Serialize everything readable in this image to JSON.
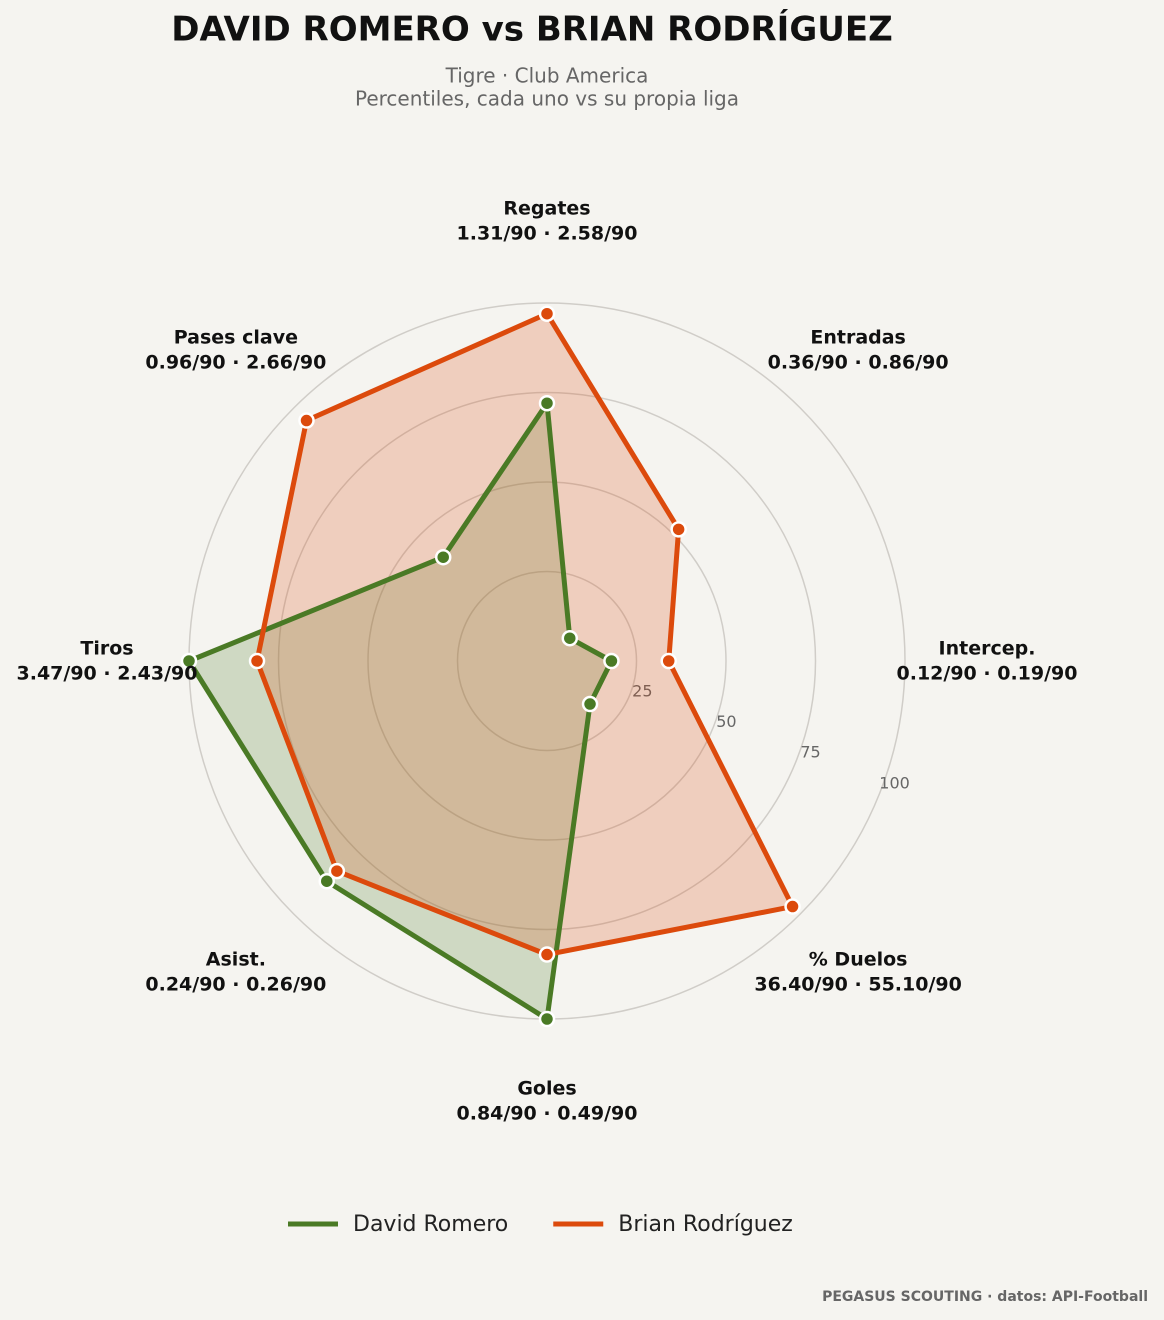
{
  "chart_data": {
    "type": "radar",
    "title": "DAVID ROMERO  vs  BRIAN RODRÍGUEZ",
    "subtitle": [
      "Tigre · Club America",
      "Percentiles, cada uno vs su propia liga"
    ],
    "categories": [
      "Regates",
      "Entradas",
      "Intercep.",
      "% Duelos",
      "Goles",
      "Asist.",
      "Tiros",
      "Pases clave"
    ],
    "category_stats": [
      "1.31/90 · 2.58/90",
      "0.36/90 · 0.86/90",
      "0.12/90 · 0.19/90",
      "36.40/90 · 55.10/90",
      "0.84/90 · 0.49/90",
      "0.24/90 · 0.26/90",
      "3.47/90 · 2.43/90",
      "0.96/90 · 2.66/90"
    ],
    "series": [
      {
        "name": "David Romero",
        "color": "#4a7a25",
        "values": [
          72,
          9,
          18,
          17,
          100,
          87,
          100,
          41
        ]
      },
      {
        "name": "Brian Rodríguez",
        "color": "#dc4a0c",
        "values": [
          97,
          52,
          34,
          97,
          82,
          83,
          81,
          95
        ]
      }
    ],
    "rlim": [
      0,
      100
    ],
    "rticks": [
      25,
      50,
      75,
      100
    ],
    "source": "PEGASUS SCOUTING · datos: API-Football"
  }
}
